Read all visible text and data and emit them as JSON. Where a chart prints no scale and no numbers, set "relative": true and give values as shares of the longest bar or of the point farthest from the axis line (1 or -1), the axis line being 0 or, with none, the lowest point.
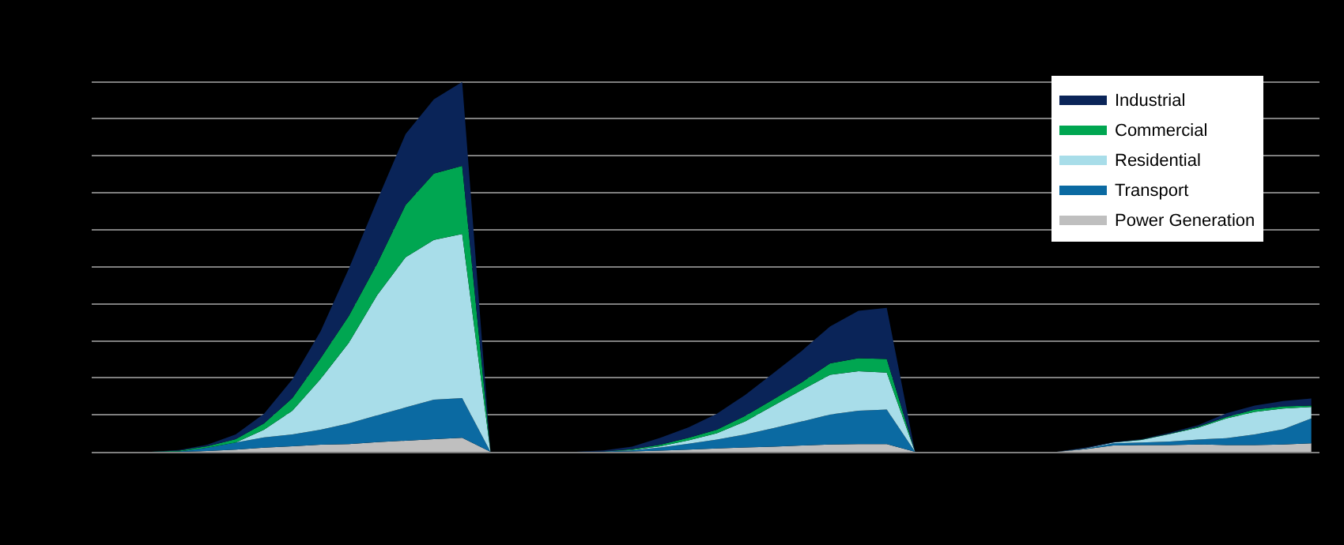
{
  "chart_data": {
    "type": "area",
    "stacked": true,
    "relative": true,
    "grid": "y",
    "legend": "top right",
    "categories": [
      null,
      null,
      null,
      null,
      null,
      null,
      null,
      null,
      null,
      null,
      null,
      null,
      null,
      null,
      null,
      null,
      null,
      null,
      null,
      null,
      null,
      null,
      null,
      null,
      null,
      null,
      null,
      null,
      null,
      null,
      null,
      null,
      null,
      null,
      null,
      null,
      null,
      null,
      null,
      null,
      null,
      null,
      null,
      null
    ],
    "series": [
      {
        "name": "Power Generation",
        "color": "#bfbfbf",
        "values": [
          0,
          0,
          0,
          0,
          0.002,
          0.006,
          0.011,
          0.015,
          0.019,
          0.021,
          0.026,
          0.03,
          0.034,
          0.038,
          0,
          0,
          0,
          0,
          0,
          0.001,
          0.003,
          0.006,
          0.009,
          0.012,
          0.014,
          0.017,
          0.02,
          0.021,
          0.021,
          0,
          0,
          0,
          0,
          0,
          0,
          0.007,
          0.017,
          0.018,
          0.018,
          0.02,
          0.018,
          0.018,
          0.02,
          0.023
        ]
      },
      {
        "name": "Transport",
        "color": "#0b6aa2",
        "values": [
          0,
          0,
          0,
          0.001,
          0.009,
          0.019,
          0.028,
          0.032,
          0.041,
          0.056,
          0.073,
          0.09,
          0.107,
          0.107,
          0,
          0,
          0,
          0,
          0.001,
          0.003,
          0.009,
          0.016,
          0.024,
          0.035,
          0.05,
          0.065,
          0.081,
          0.09,
          0.093,
          0,
          0,
          0,
          0,
          0,
          0,
          0.001,
          0.006,
          0.007,
          0.01,
          0.013,
          0.019,
          0.029,
          0.041,
          0.067
        ]
      },
      {
        "name": "Residential",
        "color": "#a8dde9",
        "values": [
          0,
          0,
          0,
          0,
          0,
          0,
          0.021,
          0.064,
          0.137,
          0.218,
          0.325,
          0.406,
          0.432,
          0.444,
          0,
          0,
          0,
          0,
          0,
          0.001,
          0.003,
          0.009,
          0.017,
          0.035,
          0.061,
          0.085,
          0.107,
          0.107,
          0.1,
          0,
          0,
          0,
          0,
          0,
          0,
          0.001,
          0.002,
          0.007,
          0.02,
          0.032,
          0.053,
          0.061,
          0.056,
          0.031
        ]
      },
      {
        "name": "Commercial",
        "color": "#00a651",
        "values": [
          0,
          0,
          0,
          0.002,
          0.004,
          0.009,
          0.017,
          0.034,
          0.056,
          0.073,
          0.085,
          0.141,
          0.179,
          0.184,
          0,
          0,
          0,
          0,
          0,
          0.002,
          0.004,
          0.007,
          0.01,
          0.015,
          0.017,
          0.021,
          0.031,
          0.035,
          0.037,
          0,
          0,
          0,
          0,
          0,
          0,
          0,
          0,
          0.001,
          0.001,
          0.003,
          0.004,
          0.006,
          0.006,
          0.004
        ]
      },
      {
        "name": "Industrial",
        "color": "#0a2458",
        "values": [
          0,
          0,
          0,
          0.002,
          0.004,
          0.013,
          0.026,
          0.051,
          0.073,
          0.128,
          0.171,
          0.192,
          0.201,
          0.227,
          0,
          0,
          0,
          0,
          0.003,
          0.007,
          0.019,
          0.028,
          0.043,
          0.057,
          0.071,
          0.085,
          0.1,
          0.128,
          0.138,
          0,
          0,
          0,
          0,
          0,
          0,
          0.002,
          0.001,
          0.001,
          0.003,
          0.004,
          0.01,
          0.011,
          0.014,
          0.019
        ]
      }
    ]
  }
}
